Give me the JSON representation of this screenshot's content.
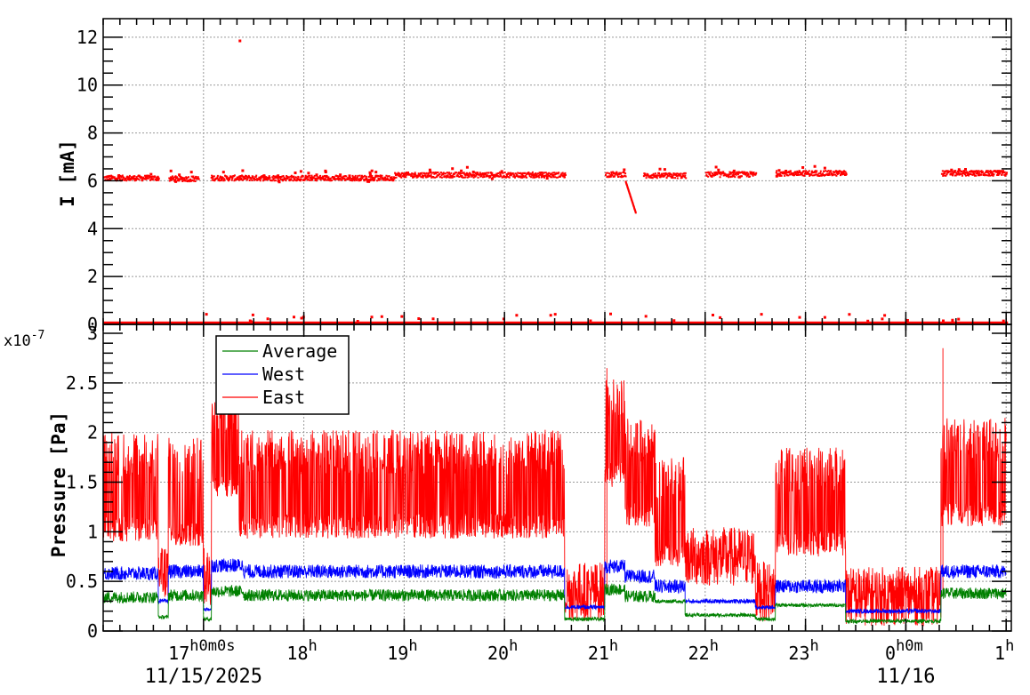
{
  "chart_data": [
    {
      "type": "scatter",
      "ylabel": "I [mA]",
      "ylim": [
        0,
        12.7
      ],
      "yticks": [
        0,
        2,
        4,
        6,
        8,
        10,
        12
      ],
      "grid": true,
      "series": [
        {
          "color": "#ff0000",
          "note_segments_hours": "x in hours from 16:00 on 11/15/2025",
          "baseline_y": 0.05,
          "clusters": [
            {
              "x_start": 0.0,
              "x_end": 0.55,
              "y": 6.15
            },
            {
              "x_start": 0.65,
              "x_end": 0.95,
              "y": 6.12
            },
            {
              "x_start": 1.07,
              "x_end": 2.9,
              "y": 6.15
            },
            {
              "x_start": 2.9,
              "x_end": 4.6,
              "y": 6.28
            },
            {
              "x_start": 5.0,
              "x_end": 5.2,
              "y": 6.3
            },
            {
              "x_start": 5.38,
              "x_end": 5.8,
              "y": 6.25
            },
            {
              "x_start": 6.0,
              "x_end": 6.5,
              "y": 6.3
            },
            {
              "x_start": 6.7,
              "x_end": 7.4,
              "y": 6.35
            },
            {
              "x_start": 8.35,
              "x_end": 9.0,
              "y": 6.35
            }
          ],
          "ramp": {
            "x_start": 5.2,
            "x_end": 5.3,
            "y_start": 6.0,
            "y_end": 4.7
          },
          "outliers": [
            {
              "x": 1.35,
              "y": 11.9
            }
          ]
        }
      ]
    },
    {
      "type": "line",
      "ylabel": "Pressure [Pa]",
      "exponent": "x10",
      "exponent_power": "-7",
      "ylim": [
        0,
        3.0
      ],
      "yticks": [
        "0",
        "0.5",
        "1",
        "1.5",
        "2",
        "2.5",
        "3"
      ],
      "ytick_values": [
        0,
        0.5,
        1,
        1.5,
        2,
        2.5,
        3
      ],
      "grid": true,
      "legend": {
        "placement": "top-left"
      },
      "series": [
        {
          "name": "Average",
          "color": "#008000",
          "base": 0.34,
          "amp": 0.12,
          "segments": [
            [
              0,
              0.55,
              0.34
            ],
            [
              0.55,
              0.65,
              0.14
            ],
            [
              0.65,
              1.0,
              0.36
            ],
            [
              1.0,
              1.08,
              0.12
            ],
            [
              1.08,
              1.4,
              0.4
            ],
            [
              1.4,
              4.6,
              0.36
            ],
            [
              4.6,
              5.0,
              0.12
            ],
            [
              5.0,
              5.2,
              0.42
            ],
            [
              5.2,
              5.5,
              0.35
            ],
            [
              5.5,
              5.8,
              0.3
            ],
            [
              5.8,
              6.5,
              0.16
            ],
            [
              6.5,
              6.7,
              0.12
            ],
            [
              6.7,
              7.4,
              0.26
            ],
            [
              7.4,
              8.35,
              0.1
            ],
            [
              8.35,
              9.0,
              0.38
            ]
          ]
        },
        {
          "name": "West",
          "color": "#0000ff",
          "base": 0.58,
          "amp": 0.14,
          "segments": [
            [
              0,
              0.55,
              0.58
            ],
            [
              0.55,
              0.65,
              0.3
            ],
            [
              0.65,
              1.0,
              0.6
            ],
            [
              1.0,
              1.08,
              0.22
            ],
            [
              1.08,
              1.4,
              0.66
            ],
            [
              1.4,
              4.6,
              0.6
            ],
            [
              4.6,
              5.0,
              0.24
            ],
            [
              5.0,
              5.2,
              0.65
            ],
            [
              5.2,
              5.5,
              0.55
            ],
            [
              5.5,
              5.8,
              0.45
            ],
            [
              5.8,
              6.5,
              0.3
            ],
            [
              6.5,
              6.7,
              0.24
            ],
            [
              6.7,
              7.4,
              0.45
            ],
            [
              7.4,
              8.35,
              0.2
            ],
            [
              8.35,
              9.0,
              0.6
            ]
          ]
        },
        {
          "name": "East",
          "color": "#ff0000",
          "base": 1.3,
          "amp": 0.6,
          "segments": [
            [
              0,
              0.55,
              1.35
            ],
            [
              0.55,
              0.65,
              0.6
            ],
            [
              0.65,
              1.0,
              1.3
            ],
            [
              1.0,
              1.08,
              0.55
            ],
            [
              1.08,
              1.35,
              1.8
            ],
            [
              1.35,
              4.6,
              1.38
            ],
            [
              4.6,
              5.0,
              0.4
            ],
            [
              5.0,
              5.2,
              1.9
            ],
            [
              5.2,
              5.5,
              1.5
            ],
            [
              5.5,
              5.8,
              1.1
            ],
            [
              5.8,
              6.5,
              0.75
            ],
            [
              6.5,
              6.7,
              0.4
            ],
            [
              6.7,
              7.4,
              1.2
            ],
            [
              7.4,
              8.35,
              0.35
            ],
            [
              8.35,
              9.0,
              1.5
            ]
          ],
          "spikes": [
            {
              "x": 5.02,
              "y": 2.65
            },
            {
              "x": 8.37,
              "y": 2.85
            }
          ]
        }
      ]
    }
  ],
  "x_axis": {
    "range_hours": [
      0,
      9.0
    ],
    "ticks": [
      {
        "h": 1,
        "main": "17",
        "sup": "h0m0s"
      },
      {
        "h": 2,
        "main": "18",
        "sup": "h"
      },
      {
        "h": 3,
        "main": "19",
        "sup": "h"
      },
      {
        "h": 4,
        "main": "20",
        "sup": "h"
      },
      {
        "h": 5,
        "main": "21",
        "sup": "h"
      },
      {
        "h": 6,
        "main": "22",
        "sup": "h"
      },
      {
        "h": 7,
        "main": "23",
        "sup": "h"
      },
      {
        "h": 8,
        "main": "0",
        "sup": "h0m"
      },
      {
        "h": 9,
        "main": "1",
        "sup": "h"
      }
    ],
    "dates": [
      {
        "h": 1,
        "label": "11/15/2025"
      },
      {
        "h": 8,
        "label": "11/16"
      }
    ]
  }
}
